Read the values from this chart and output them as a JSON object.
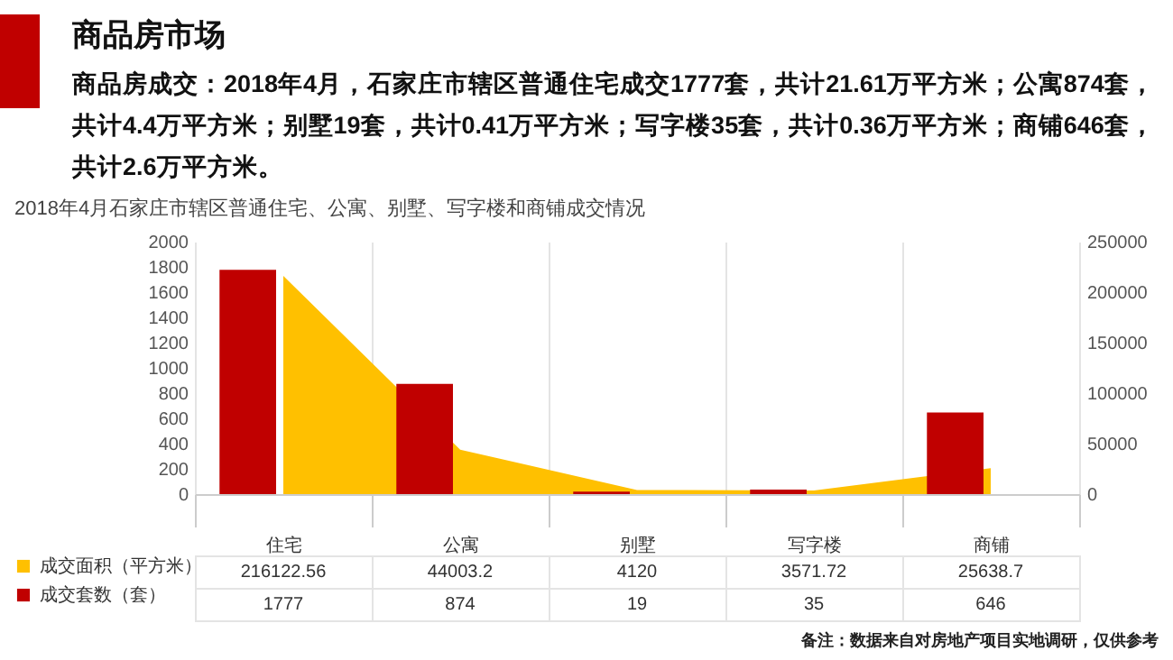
{
  "chart_data": {
    "type": "bar",
    "title": "商品房市场",
    "subtitle": "商品房成交：2018年4月，石家庄市辖区普通住宅成交1777套，共计21.61万平方米；公寓874套，共计4.4万平方米；别墅19套，共计0.41万平方米；写字楼35套，共计0.36万平方米；商铺646套，共计2.6万平方米。",
    "annotations": [
      "2018年4月石家庄市辖区普通住宅、公寓、别墅、写字楼和商铺成交情况",
      "备注：数据来自对房地产项目实地调研，仅供参考"
    ],
    "categories": [
      "住宅",
      "公寓",
      "别墅",
      "写字楼",
      "商铺"
    ],
    "series": [
      {
        "name": "成交面积（平方米）",
        "type": "area",
        "axis": "y2",
        "color": "#ffc000",
        "values": [
          216122.56,
          44003.2,
          4120,
          3571.72,
          25638.7
        ],
        "value_labels": [
          "216122.56",
          "44003.2",
          "4120",
          "3571.72",
          "25638.7"
        ]
      },
      {
        "name": "成交套数（套）",
        "color": "#c00000",
        "values": [
          1777,
          874,
          19,
          35,
          646
        ],
        "value_labels": [
          "1777",
          "874",
          "19",
          "35",
          "646"
        ]
      }
    ],
    "ylim": [
      0,
      2000
    ],
    "yticks": [
      0,
      200,
      400,
      600,
      800,
      1000,
      1200,
      1400,
      1600,
      1800,
      2000
    ],
    "y2lim": [
      0,
      250000
    ],
    "y2ticks": [
      0,
      50000,
      100000,
      150000,
      200000,
      250000
    ],
    "legend": "bottom left",
    "grid": false
  }
}
